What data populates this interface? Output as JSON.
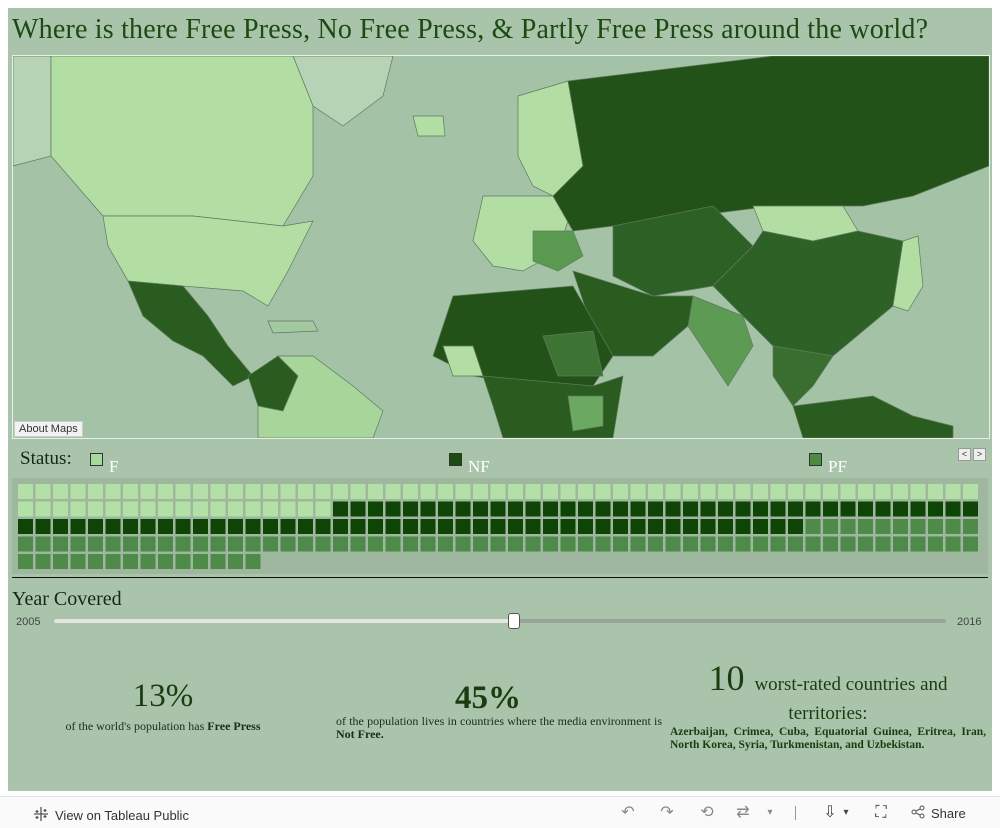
{
  "title": "Where is there Free Press, No Free Press, & Partly Free Press around the world?",
  "map": {
    "about_label": "About Maps"
  },
  "legend": {
    "title": "Status:",
    "items": [
      {
        "label": "F",
        "color": "#a7d99a"
      },
      {
        "label": "NF",
        "color": "#1f4a14"
      },
      {
        "label": "PF",
        "color": "#4d8a45"
      }
    ],
    "prev": "<",
    "next": ">"
  },
  "grid": {
    "free_count": 73,
    "not_free_count": 82,
    "partly_free_count": 79,
    "colors": {
      "F": "#b3e0a6",
      "NF": "#0e4406",
      "PF": "#4e8a48"
    }
  },
  "year": {
    "label": "Year Covered",
    "min": "2005",
    "max": "2016",
    "selected_fraction": 0.515
  },
  "stats": {
    "free_value": "13%",
    "free_text_pre": "of the world's population has ",
    "free_text_bold": "Free Press",
    "notfree_value": "45%",
    "notfree_text_pre": "of the population lives in countries where the media environment is ",
    "notfree_text_bold": "Not Free.",
    "worst_number": "10",
    "worst_label": "worst-rated countries and territories:",
    "worst_list": "Azerbaijan, Crimea, Cuba, Equatorial Guinea, Eritrea, Iran, North Korea, Syria, Turkmenistan, and Uzbekistan."
  },
  "toolbar": {
    "view_label": "View on Tableau Public",
    "share_label": "Share",
    "icons": [
      "undo-icon",
      "redo-icon",
      "revert-icon",
      "refresh-icon",
      "download-icon",
      "fullscreen-icon",
      "share-icon"
    ]
  }
}
